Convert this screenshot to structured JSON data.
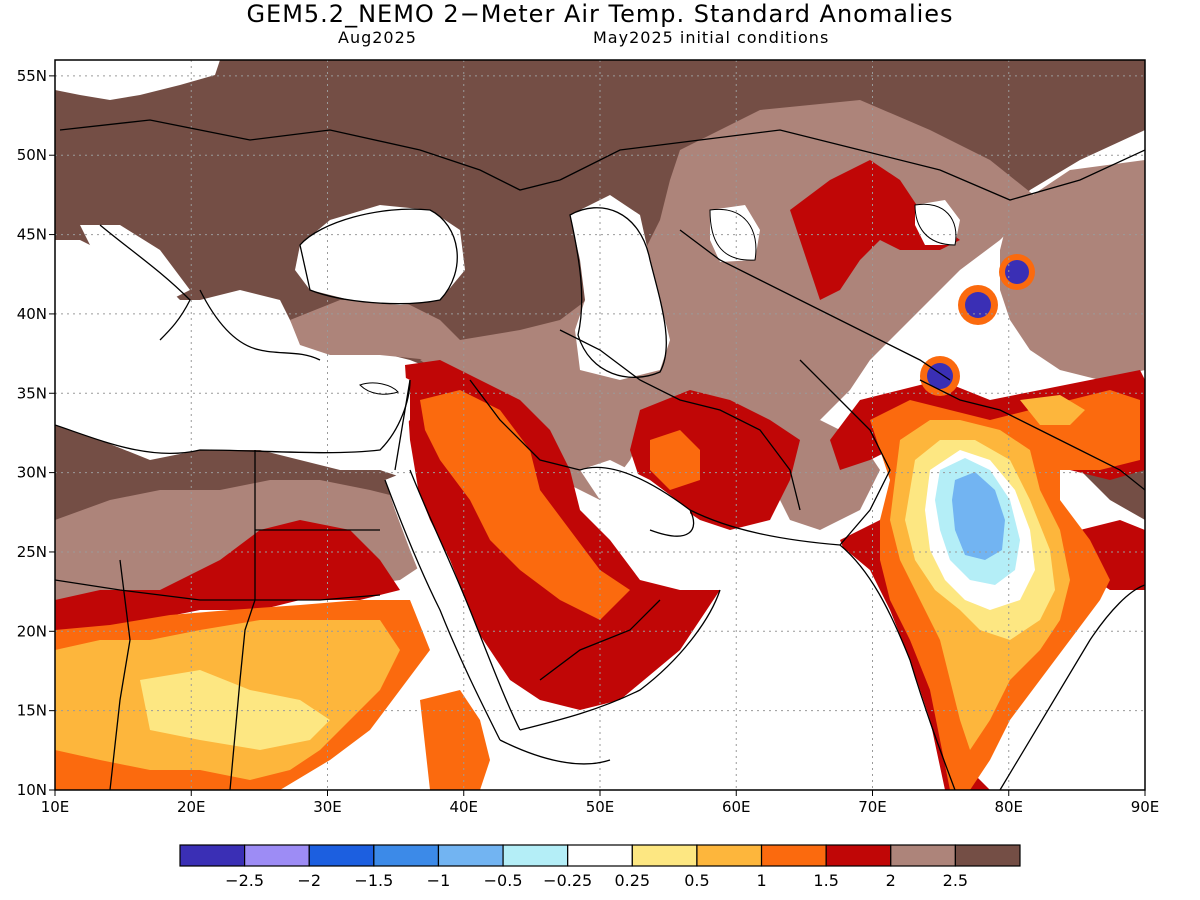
{
  "header": {
    "title": "GEM5.2_NEMO 2−Meter Air Temp. Standard Anomalies",
    "valid_month": "Aug2025",
    "init_conditions": "May2025 initial conditions"
  },
  "map": {
    "lon_range": [
      10,
      90
    ],
    "lat_range": [
      10,
      56
    ],
    "lon_ticks": [
      {
        "value": 10,
        "label": "10E"
      },
      {
        "value": 20,
        "label": "20E"
      },
      {
        "value": 30,
        "label": "30E"
      },
      {
        "value": 40,
        "label": "40E"
      },
      {
        "value": 50,
        "label": "50E"
      },
      {
        "value": 60,
        "label": "60E"
      },
      {
        "value": 70,
        "label": "70E"
      },
      {
        "value": 80,
        "label": "80E"
      },
      {
        "value": 90,
        "label": "90E"
      }
    ],
    "lat_ticks": [
      {
        "value": 10,
        "label": "10N"
      },
      {
        "value": 15,
        "label": "15N"
      },
      {
        "value": 20,
        "label": "20N"
      },
      {
        "value": 25,
        "label": "25N"
      },
      {
        "value": 30,
        "label": "30N"
      },
      {
        "value": 35,
        "label": "35N"
      },
      {
        "value": 40,
        "label": "40N"
      },
      {
        "value": 45,
        "label": "45N"
      },
      {
        "value": 50,
        "label": "50N"
      },
      {
        "value": 55,
        "label": "55N"
      }
    ],
    "gridlines": true,
    "colors": {
      "ocean": "#ffffff",
      "coastline": "#000000",
      "gridline": "#9a9a9a"
    }
  },
  "colorbar": {
    "bins": [
      {
        "color": "#3a2fb5"
      },
      {
        "color": "#9d8cf5"
      },
      {
        "color": "#1c5fe0"
      },
      {
        "color": "#3c8ae8"
      },
      {
        "color": "#72b4f2"
      },
      {
        "color": "#b4eef7"
      },
      {
        "color": "#ffffff"
      },
      {
        "color": "#fde782"
      },
      {
        "color": "#fdb63c"
      },
      {
        "color": "#fb6a0e"
      },
      {
        "color": "#c00606"
      },
      {
        "color": "#ad847a"
      },
      {
        "color": "#744e45"
      }
    ],
    "tick_labels": [
      "−2.5",
      "−2",
      "−1.5",
      "−1",
      "−0.5",
      "−0.25",
      "0.25",
      "0.5",
      "1",
      "1.5",
      "2",
      "2.5"
    ]
  }
}
